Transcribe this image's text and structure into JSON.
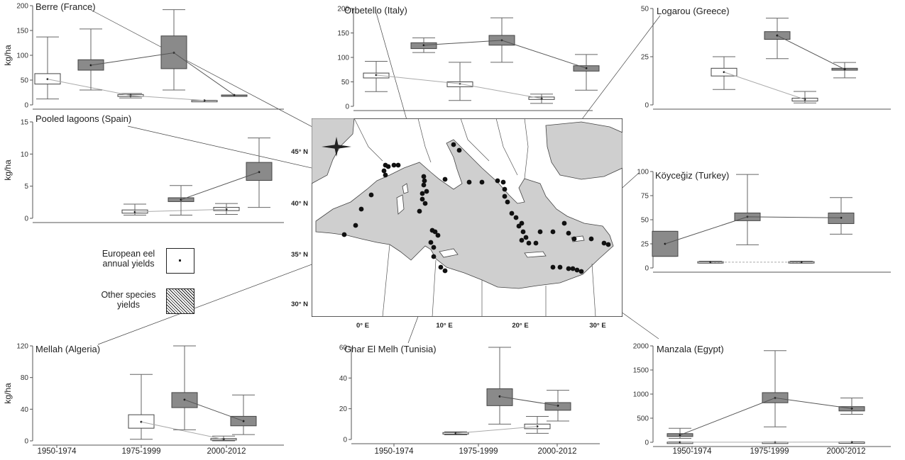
{
  "legend": {
    "eel_label": "European eel annual yields",
    "other_label": "Other species yields"
  },
  "map": {
    "lat_labels": [
      "45° N",
      "40° N",
      "35° N",
      "30° N"
    ],
    "lon_labels": [
      "0° E",
      "10° E",
      "20° E",
      "30° E"
    ],
    "site_count": 59
  },
  "chart_data": [
    {
      "id": "berre",
      "type": "box",
      "title": "Berre (France)",
      "ylabel": "kg/ha",
      "ylim": [
        0,
        200
      ],
      "yticks": [
        "0",
        "50",
        "100",
        "150",
        "200"
      ],
      "categories": [],
      "series": [
        {
          "name": "European eel annual yields",
          "boxes": [
            [
              12,
              42,
              52,
              63,
              137
            ],
            [
              14,
              17,
              19,
              21,
              23
            ],
            [
              9,
              9,
              9,
              9,
              9
            ],
            null
          ]
        },
        {
          "name": "Other species yields",
          "boxes": [
            [
              30,
              70,
              80,
              91,
              153
            ],
            [
              30,
              73,
              105,
              139,
              192
            ],
            [
              20,
              20,
              20,
              20,
              20
            ],
            null
          ]
        }
      ]
    },
    {
      "id": "orbetello",
      "type": "box",
      "title": "Orbetello (Italy)",
      "ylabel": "",
      "ylim": [
        0,
        200
      ],
      "yticks": [
        "0",
        "50",
        "100",
        "150",
        "200"
      ],
      "categories": [],
      "series": [
        {
          "name": "European eel annual yields",
          "boxes": [
            [
              30,
              58,
              64,
              68,
              92
            ],
            [
              12,
              40,
              46,
              50,
              90
            ],
            [
              6,
              14,
              16,
              19,
              25
            ]
          ]
        },
        {
          "name": "Other species yields",
          "boxes": [
            [
              110,
              118,
              125,
              130,
              140
            ],
            [
              90,
              125,
              135,
              145,
              181
            ],
            [
              33,
              72,
              78,
              83,
              106
            ]
          ]
        }
      ]
    },
    {
      "id": "logarou",
      "type": "box",
      "title": "Logarou (Greece)",
      "ylabel": "",
      "ylim": [
        0,
        50
      ],
      "yticks": [
        "0",
        "25",
        "50"
      ],
      "categories": [],
      "series": [
        {
          "name": "European eel annual yields",
          "boxes": [
            null,
            [
              8,
              15,
              17,
              19,
              25
            ],
            [
              1,
              2,
              2.8,
              3.5,
              7
            ]
          ]
        },
        {
          "name": "Other species yields",
          "boxes": [
            null,
            [
              24,
              34,
              36,
              38,
              45
            ],
            [
              14,
              18,
              18.5,
              19,
              22
            ]
          ]
        }
      ]
    },
    {
      "id": "spain",
      "type": "box",
      "title": "Pooled lagoons (Spain)",
      "ylabel": "kg/ha",
      "ylim": [
        0,
        15
      ],
      "yticks": [
        "0",
        "5",
        "10",
        "15"
      ],
      "categories": [],
      "series": [
        {
          "name": "European eel annual yields",
          "boxes": [
            null,
            [
              0.5,
              0.8,
              1.0,
              1.3,
              2.2
            ],
            [
              0.6,
              1.2,
              1.4,
              1.7,
              2.3
            ]
          ]
        },
        {
          "name": "Other species yields",
          "boxes": [
            null,
            [
              0.5,
              2.6,
              2.9,
              3.2,
              5.1
            ],
            [
              1.7,
              5.9,
              7.2,
              8.7,
              12.5
            ]
          ]
        }
      ]
    },
    {
      "id": "koycegiz",
      "type": "box",
      "title": "Köyceğiz (Turkey)",
      "ylabel": "",
      "ylim": [
        0,
        100
      ],
      "yticks": [
        "0",
        "25",
        "50",
        "75",
        "100"
      ],
      "categories": [],
      "series": [
        {
          "name": "European eel annual yields",
          "boxes": [
            null,
            [
              5,
              5.5,
              6,
              6.5,
              7
            ],
            [
              5,
              5.5,
              6,
              6.5,
              7
            ]
          ]
        },
        {
          "name": "Other species yields",
          "boxes": [
            [
              12,
              12,
              25,
              38,
              38
            ],
            [
              24,
              49,
              53,
              57,
              97
            ],
            [
              35,
              46,
              52,
              57,
              73
            ]
          ]
        }
      ]
    },
    {
      "id": "mellah",
      "type": "box",
      "title": "Mellah (Algeria)",
      "ylabel": "kg/ha",
      "ylim": [
        0,
        120
      ],
      "yticks": [
        "0",
        "40",
        "80",
        "120"
      ],
      "categories": [
        "1950-1974",
        "1975-1999",
        "2000-2012"
      ],
      "series": [
        {
          "name": "European eel annual yields",
          "boxes": [
            null,
            [
              2,
              16,
              24,
              33,
              84
            ],
            [
              0,
              1,
              2,
              3,
              6
            ]
          ]
        },
        {
          "name": "Other species yields",
          "boxes": [
            null,
            [
              14,
              42,
              52,
              61,
              120
            ],
            [
              8,
              19,
              25,
              31,
              58
            ]
          ]
        }
      ]
    },
    {
      "id": "ghar",
      "type": "box",
      "title": "Ghar El Melh (Tunisia)",
      "ylabel": "",
      "ylim": [
        0,
        60
      ],
      "yticks": [
        "0",
        "20",
        "40",
        "60"
      ],
      "categories": [
        "1950-1974",
        "1975-1999",
        "2000-2012"
      ],
      "series": [
        {
          "name": "European eel annual yields",
          "boxes": [
            null,
            [
              3,
              3.5,
              4,
              4.5,
              5
            ],
            [
              4,
              7,
              8.5,
              10,
              15
            ]
          ]
        },
        {
          "name": "Other species yields",
          "boxes": [
            null,
            [
              10,
              22,
              28,
              33,
              60
            ],
            [
              12,
              19,
              22,
              24,
              32
            ]
          ]
        }
      ]
    },
    {
      "id": "manzala",
      "type": "box",
      "title": "Manzala (Egypt)",
      "ylabel": "",
      "ylim": [
        0,
        2000
      ],
      "yticks": [
        "0",
        "500",
        "1000",
        "1500",
        "2000"
      ],
      "categories": [
        "1950-1974",
        "1975-1999",
        "2000-2012"
      ],
      "series": [
        {
          "name": "European eel annual yields",
          "boxes": [
            [
              0,
              1,
              2,
              3,
              4
            ],
            [
              0,
              1,
              2,
              3,
              4
            ],
            [
              0,
              2,
              4,
              6,
              8
            ]
          ]
        },
        {
          "name": "Other species yields",
          "boxes": [
            [
              80,
              120,
              150,
              180,
              290
            ],
            [
              320,
              820,
              920,
              1030,
              1900
            ],
            [
              580,
              650,
              700,
              740,
              920
            ]
          ]
        }
      ]
    }
  ]
}
